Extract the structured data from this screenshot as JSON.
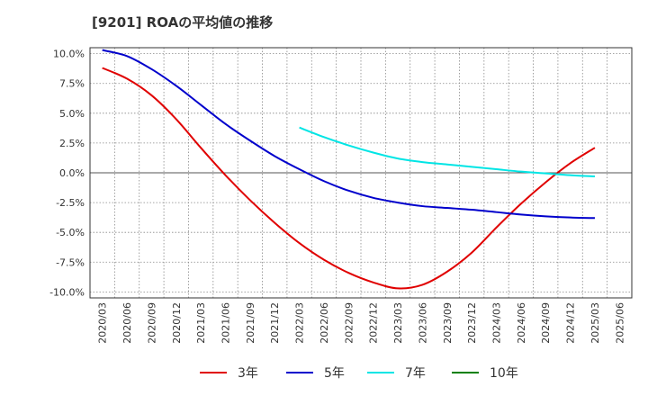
{
  "title": "[9201]  ROAの平均値の推移",
  "chart_data": {
    "type": "line",
    "title": "[9201]  ROAの平均値の推移",
    "xlabel": "",
    "ylabel": "",
    "x_ticks": [
      "2020/03",
      "2020/06",
      "2020/09",
      "2020/12",
      "2021/03",
      "2021/06",
      "2021/09",
      "2021/12",
      "2022/03",
      "2022/06",
      "2022/09",
      "2022/12",
      "2023/03",
      "2023/06",
      "2023/09",
      "2023/12",
      "2024/03",
      "2024/06",
      "2024/09",
      "2024/12",
      "2025/03",
      "2025/06"
    ],
    "y_ticks": [
      "10.0%",
      "7.5%",
      "5.0%",
      "2.5%",
      "0.0%",
      "-2.5%",
      "-5.0%",
      "-7.5%",
      "-10.0%"
    ],
    "ylim": [
      -10.5,
      10.5
    ],
    "grid": true,
    "legend_position": "bottom",
    "series": [
      {
        "name": "3年",
        "color": "#e00000",
        "values": [
          8.8,
          7.9,
          6.5,
          4.5,
          2.1,
          -0.2,
          -2.3,
          -4.2,
          -5.9,
          -7.3,
          -8.4,
          -9.2,
          -9.7,
          -9.4,
          -8.3,
          -6.7,
          -4.6,
          -2.6,
          -0.8,
          0.8,
          2.1,
          null
        ]
      },
      {
        "name": "5年",
        "color": "#0000cc",
        "values": [
          10.3,
          9.8,
          8.7,
          7.3,
          5.7,
          4.1,
          2.7,
          1.4,
          0.3,
          -0.7,
          -1.5,
          -2.1,
          -2.5,
          -2.8,
          -2.95,
          -3.1,
          -3.3,
          -3.5,
          -3.65,
          -3.75,
          -3.8,
          null
        ]
      },
      {
        "name": "7年",
        "color": "#00e5e5",
        "values": [
          null,
          null,
          null,
          null,
          null,
          null,
          null,
          null,
          3.8,
          3.0,
          2.3,
          1.7,
          1.2,
          0.9,
          0.7,
          0.5,
          0.3,
          0.1,
          -0.05,
          -0.2,
          -0.3,
          null
        ]
      },
      {
        "name": "10年",
        "color": "#008000",
        "values": [
          null,
          null,
          null,
          null,
          null,
          null,
          null,
          null,
          null,
          null,
          null,
          null,
          null,
          null,
          null,
          null,
          null,
          null,
          null,
          null,
          null,
          null
        ]
      }
    ]
  }
}
